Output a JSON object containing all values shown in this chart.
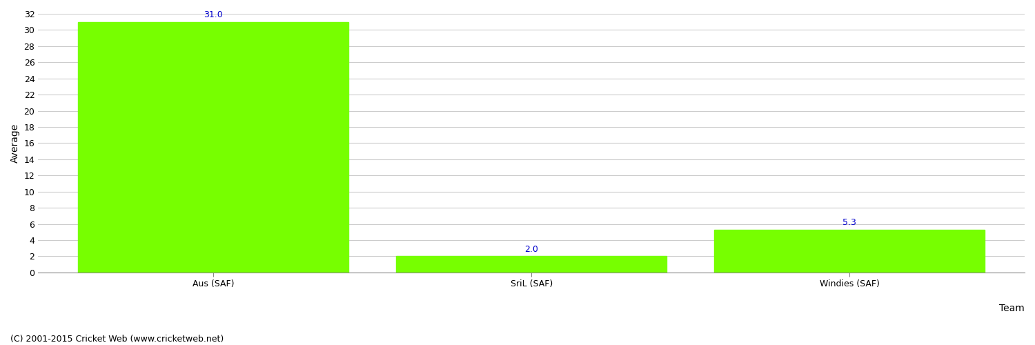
{
  "categories": [
    "Aus (SAF)",
    "SriL (SAF)",
    "Windies (SAF)"
  ],
  "values": [
    31.0,
    2.0,
    5.3
  ],
  "bar_color": "#77ff00",
  "bar_edge_color": "#77ff00",
  "xlabel": "Team",
  "ylabel": "Average",
  "ylim": [
    0,
    32
  ],
  "yticks": [
    0,
    2,
    4,
    6,
    8,
    10,
    12,
    14,
    16,
    18,
    20,
    22,
    24,
    26,
    28,
    30,
    32
  ],
  "value_label_color": "#0000cc",
  "value_label_fontsize": 9,
  "axis_label_fontsize": 10,
  "tick_label_fontsize": 9,
  "grid_color": "#cccccc",
  "background_color": "#ffffff",
  "footer_text": "(C) 2001-2015 Cricket Web (www.cricketweb.net)",
  "footer_fontsize": 9
}
